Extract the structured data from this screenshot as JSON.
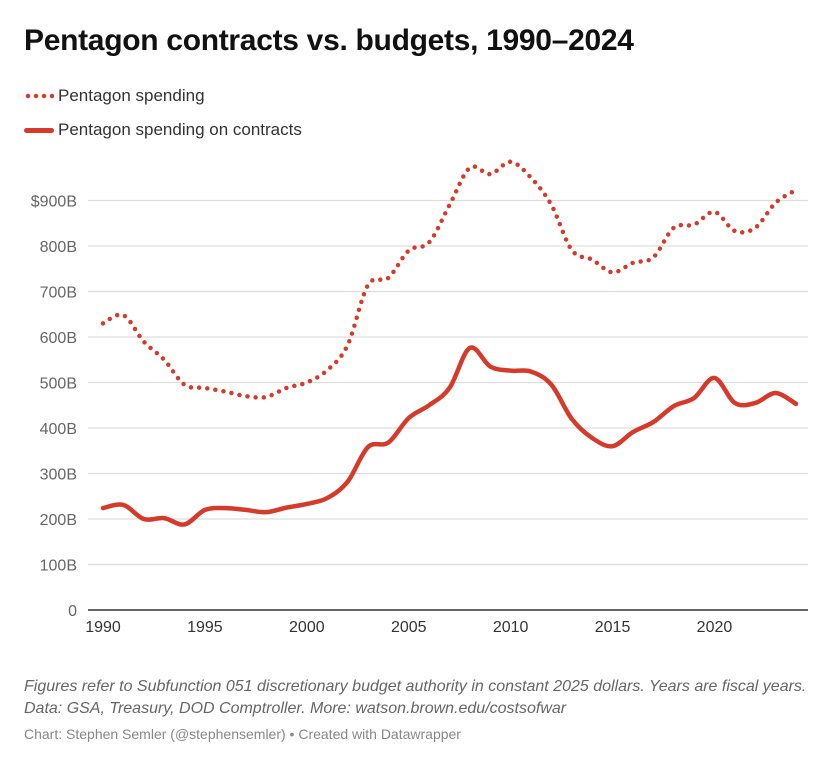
{
  "title": "Pentagon contracts vs. budgets, 1990–2024",
  "legend": [
    {
      "label": "Pentagon spending",
      "style": "dotted"
    },
    {
      "label": "Pentagon spending on contracts",
      "style": "solid"
    }
  ],
  "notes": "Figures refer to Subfunction 051 discretionary budget authority in constant 2025 dollars. Years are fiscal years. Data: GSA, Treasury, DOD Comptroller. More: watson.brown.edu/costsofwar",
  "credit": "Chart: Stephen Semler (@stephensemler) • Created with Datawrapper",
  "colors": {
    "series": "#d63a2a",
    "grid": "#dddddd",
    "axis": "#333333",
    "tick_text": "#666666"
  },
  "chart_data": {
    "type": "line",
    "title": "Pentagon contracts vs. budgets, 1990–2024",
    "xlabel": "",
    "ylabel": "",
    "x": [
      1990,
      1991,
      1992,
      1993,
      1994,
      1995,
      1996,
      1997,
      1998,
      1999,
      2000,
      2001,
      2002,
      2003,
      2004,
      2005,
      2006,
      2007,
      2008,
      2009,
      2010,
      2011,
      2012,
      2013,
      2014,
      2015,
      2016,
      2017,
      2018,
      2019,
      2020,
      2021,
      2022,
      2023,
      2024
    ],
    "series": [
      {
        "name": "Pentagon spending",
        "style": "dotted",
        "values": [
          630,
          648,
          590,
          550,
          495,
          488,
          480,
          470,
          468,
          488,
          500,
          527,
          582,
          714,
          730,
          790,
          808,
          890,
          972,
          958,
          985,
          950,
          890,
          791,
          770,
          742,
          763,
          775,
          840,
          847,
          875,
          833,
          840,
          895,
          923
        ]
      },
      {
        "name": "Pentagon spending on contracts",
        "style": "solid",
        "values": [
          224,
          231,
          200,
          202,
          188,
          220,
          224,
          220,
          215,
          225,
          233,
          246,
          282,
          358,
          368,
          422,
          450,
          488,
          576,
          535,
          526,
          524,
          495,
          420,
          378,
          360,
          391,
          413,
          448,
          466,
          510,
          455,
          455,
          477,
          453
        ]
      }
    ],
    "xlim": [
      1990,
      2024
    ],
    "ylim": [
      0,
      1000
    ],
    "x_ticks": [
      1990,
      1995,
      2000,
      2005,
      2010,
      2015,
      2020
    ],
    "x_tick_labels": [
      "1990",
      "1995",
      "2000",
      "2005",
      "2010",
      "2015",
      "2020"
    ],
    "y_ticks": [
      0,
      100,
      200,
      300,
      400,
      500,
      600,
      700,
      800,
      900
    ],
    "y_tick_labels": [
      "0",
      "100B",
      "200B",
      "300B",
      "400B",
      "500B",
      "600B",
      "700B",
      "800B",
      "$900B"
    ],
    "units": "billions of constant 2025 dollars",
    "grid": true,
    "legend_position": "top-left"
  }
}
